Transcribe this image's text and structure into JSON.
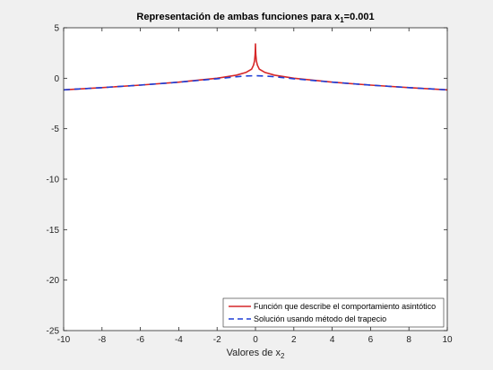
{
  "chart_data": {
    "type": "line",
    "title": {
      "main": "Representación de ambas funciones para x",
      "sub": "1",
      "tail": "=0.001"
    },
    "xlabel": {
      "main": "Valores de x",
      "sub": "2"
    },
    "ylabel": "",
    "xlim": [
      -10,
      10
    ],
    "ylim": [
      -25,
      5
    ],
    "xticks": [
      -10,
      -8,
      -6,
      -4,
      -2,
      0,
      2,
      4,
      6,
      8,
      10
    ],
    "yticks": [
      5,
      0,
      -5,
      -10,
      -15,
      -20,
      -25
    ],
    "grid": false,
    "legend_position": "bottom-right",
    "series": [
      {
        "name": "Función que describe el comportamiento asintótico",
        "color": "#d62728",
        "style": "solid",
        "x": [
          -10,
          -8,
          -6,
          -4,
          -2,
          -1,
          -0.5,
          -0.2,
          -0.1,
          -0.05,
          -0.02,
          -0.01,
          0,
          0.01,
          0.02,
          0.05,
          0.1,
          0.2,
          0.5,
          1,
          2,
          4,
          6,
          8,
          10
        ],
        "y": [
          -1.15,
          -0.93,
          -0.68,
          -0.39,
          0.0,
          0.3,
          0.57,
          0.9,
          1.3,
          1.7,
          2.3,
          2.7,
          3.4,
          2.7,
          2.3,
          1.7,
          1.3,
          0.9,
          0.57,
          0.3,
          0.0,
          -0.39,
          -0.68,
          -0.93,
          -1.15
        ]
      },
      {
        "name": "Solución usando método del trapecio",
        "color": "#1f3fd6",
        "style": "dashed",
        "x": [
          -10,
          -8,
          -6,
          -4,
          -2,
          -1,
          -0.5,
          0,
          0.5,
          1,
          2,
          4,
          6,
          8,
          10
        ],
        "y": [
          -1.15,
          -0.93,
          -0.68,
          -0.39,
          -0.05,
          0.15,
          0.22,
          0.25,
          0.22,
          0.15,
          -0.05,
          -0.39,
          -0.68,
          -0.93,
          -1.15
        ]
      }
    ]
  }
}
